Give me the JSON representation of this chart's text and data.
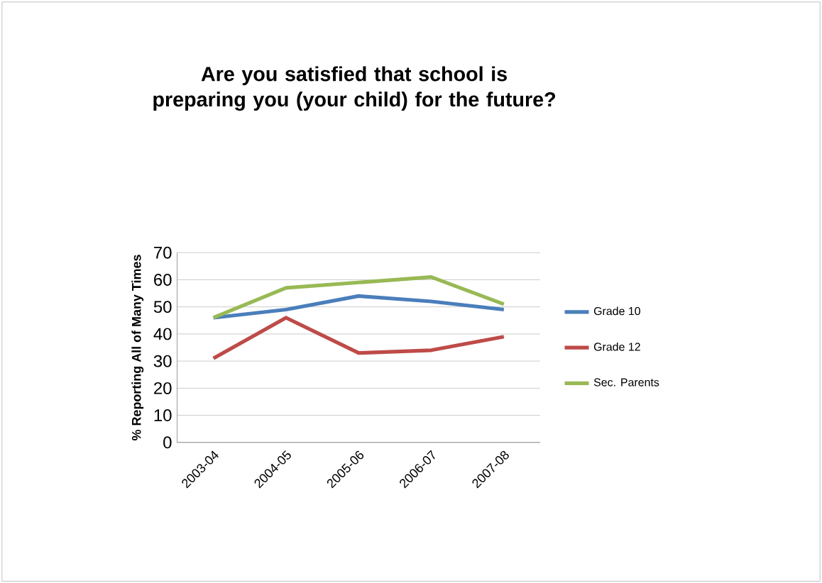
{
  "chart_data": {
    "type": "line",
    "title": "Are you satisfied that school is preparing you (your child) for the future?",
    "ylabel": "% Reporting All of Many Times",
    "categories": [
      "2003-04",
      "2004-05",
      "2005-06",
      "2006-07",
      "2007-08"
    ],
    "series": [
      {
        "name": "Grade 10",
        "color": "#4a7ebb",
        "values": [
          46,
          49,
          54,
          52,
          49
        ]
      },
      {
        "name": "Grade 12",
        "color": "#be4b48",
        "values": [
          31,
          46,
          33,
          34,
          39
        ]
      },
      {
        "name": "Sec. Parents",
        "color": "#98b954",
        "values": [
          46,
          57,
          59,
          61,
          51
        ]
      }
    ],
    "ylim": [
      0,
      70
    ],
    "yticks": [
      0,
      10,
      20,
      30,
      40,
      50,
      60,
      70
    ],
    "grid": "y",
    "legend": "right",
    "marker": "none",
    "line_style": "solid"
  }
}
